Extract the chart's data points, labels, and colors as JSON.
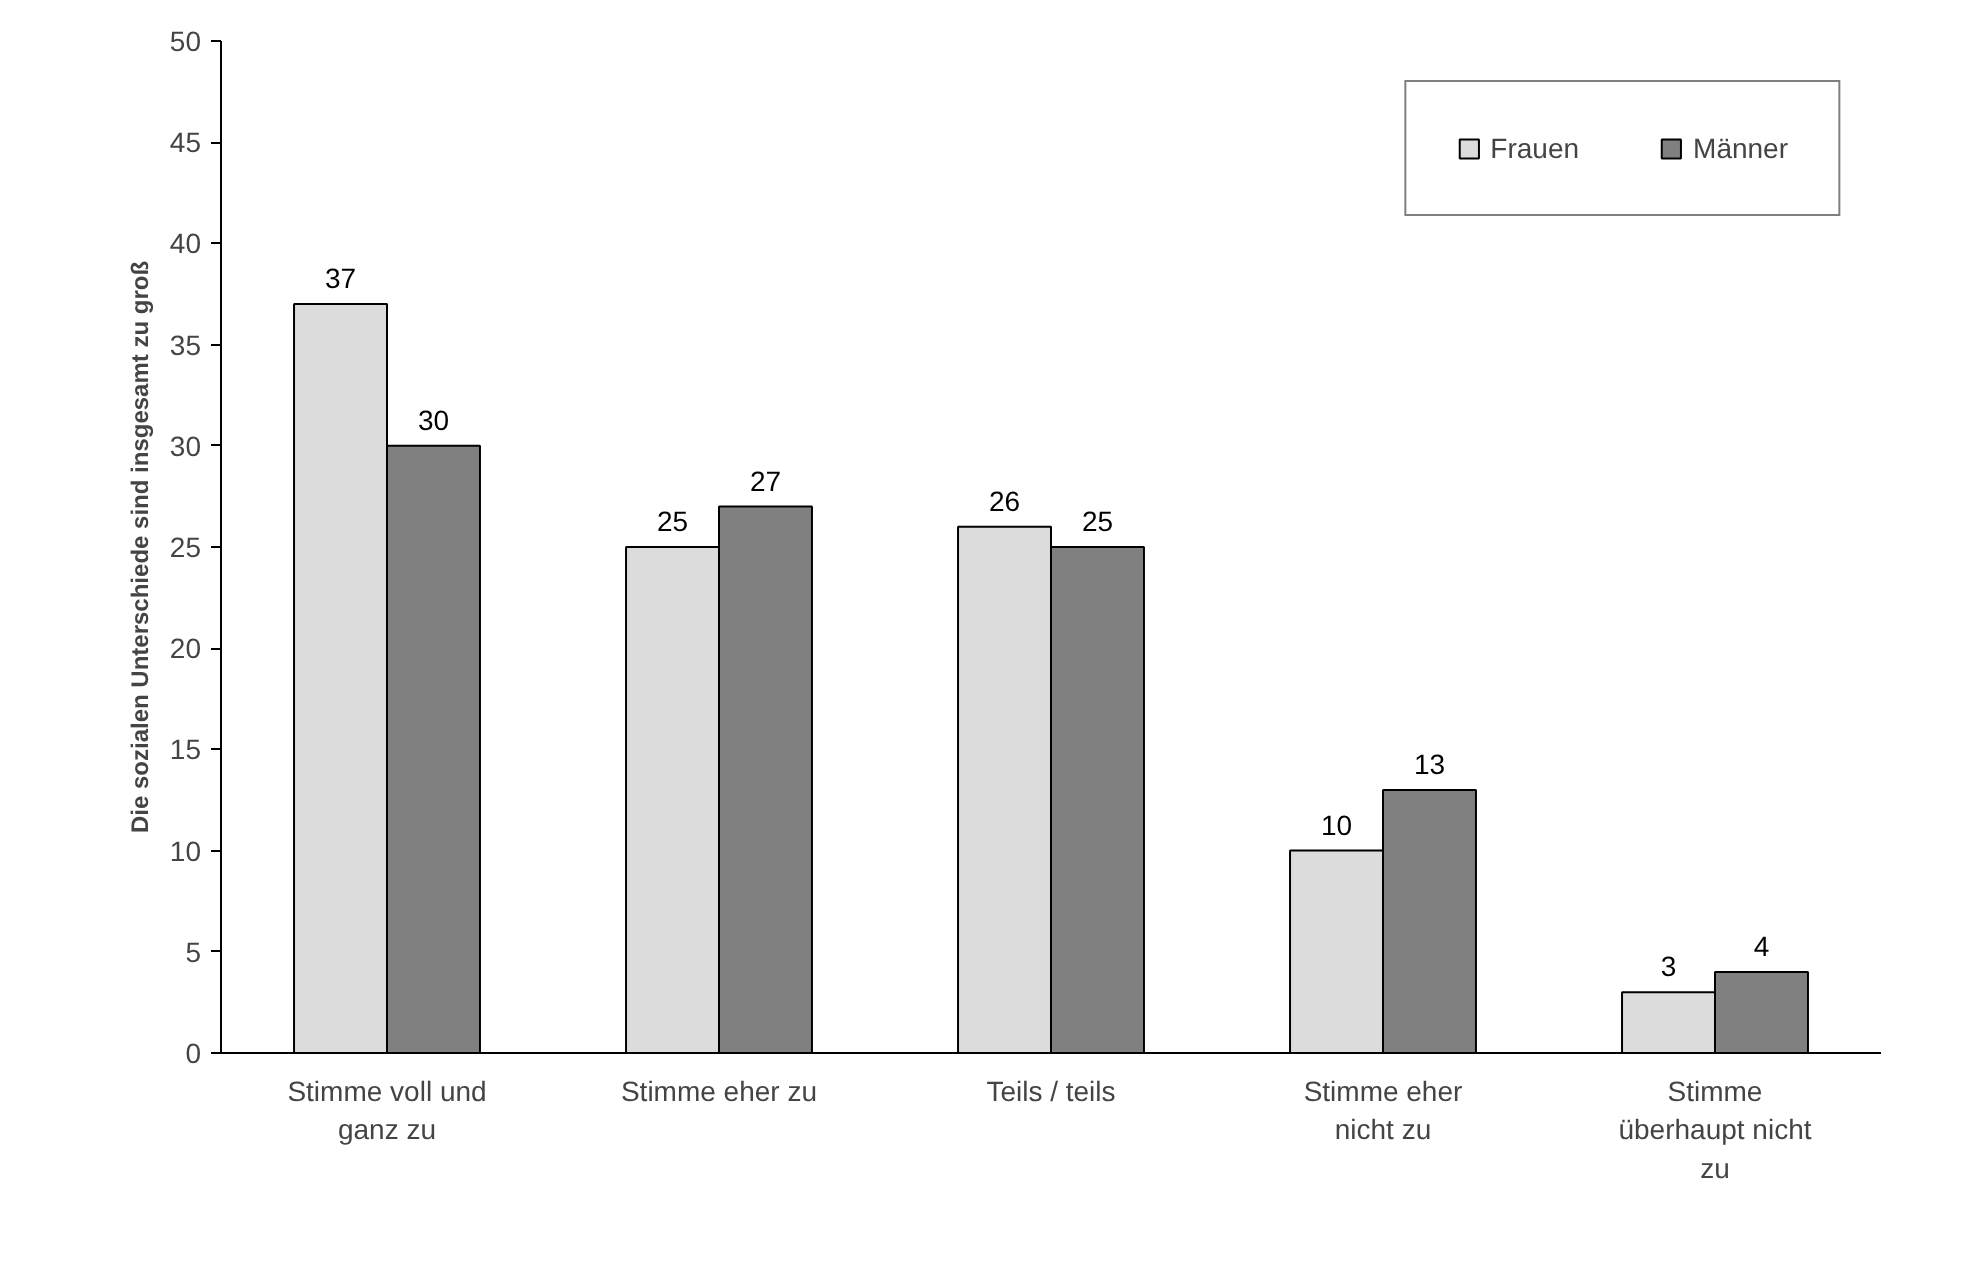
{
  "chart_data": {
    "type": "bar",
    "ylabel": "Die sozialen Unterschiede sind insgesamt zu groß",
    "categories": [
      "Stimme voll und ganz zu",
      "Stimme eher zu",
      "Teils / teils",
      "Stimme eher nicht zu",
      "Stimme überhaupt nicht zu"
    ],
    "series": [
      {
        "name": "Frauen",
        "color": "#dcdcdc",
        "values": [
          37,
          25,
          26,
          10,
          3
        ]
      },
      {
        "name": "Männer",
        "color": "#808080",
        "values": [
          30,
          27,
          25,
          13,
          4
        ]
      }
    ],
    "ylim": [
      0,
      50
    ],
    "yticks": [
      0,
      5,
      10,
      15,
      20,
      25,
      30,
      35,
      40,
      45,
      50
    ],
    "data_labels": true,
    "legend": "top right",
    "grid": false
  }
}
